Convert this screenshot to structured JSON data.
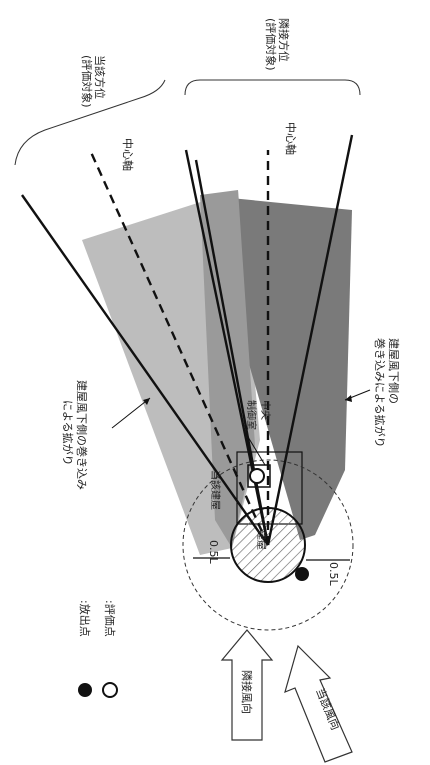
{
  "labels": {
    "target_direction": "当該方位",
    "target_direction_eval": "(評価対象)",
    "adjacent_direction": "隣接方位",
    "adjacent_direction_eval": "(評価対象)",
    "center_axis_1": "中心軸",
    "center_axis_2": "中心軸",
    "wake_left_1": "建屋風下側の巻き込み",
    "wake_left_2": "による拡がり",
    "wake_right_1": "建屋風下側の",
    "wake_right_2": "巻き込みによる拡がり",
    "control_room_1": "中央",
    "control_room_2": "制御室",
    "target_building": "当該建屋",
    "building": "建屋",
    "dist_left": "0.5L",
    "dist_right": "0.5L",
    "legend_release": ":放出点",
    "legend_eval": ":評価点",
    "wind_adjacent": "隣接風向",
    "wind_target": "当該風向"
  },
  "colors": {
    "light_gray": "#bdbdbd",
    "dark_gray": "#7a7a7a",
    "line": "#111111"
  }
}
